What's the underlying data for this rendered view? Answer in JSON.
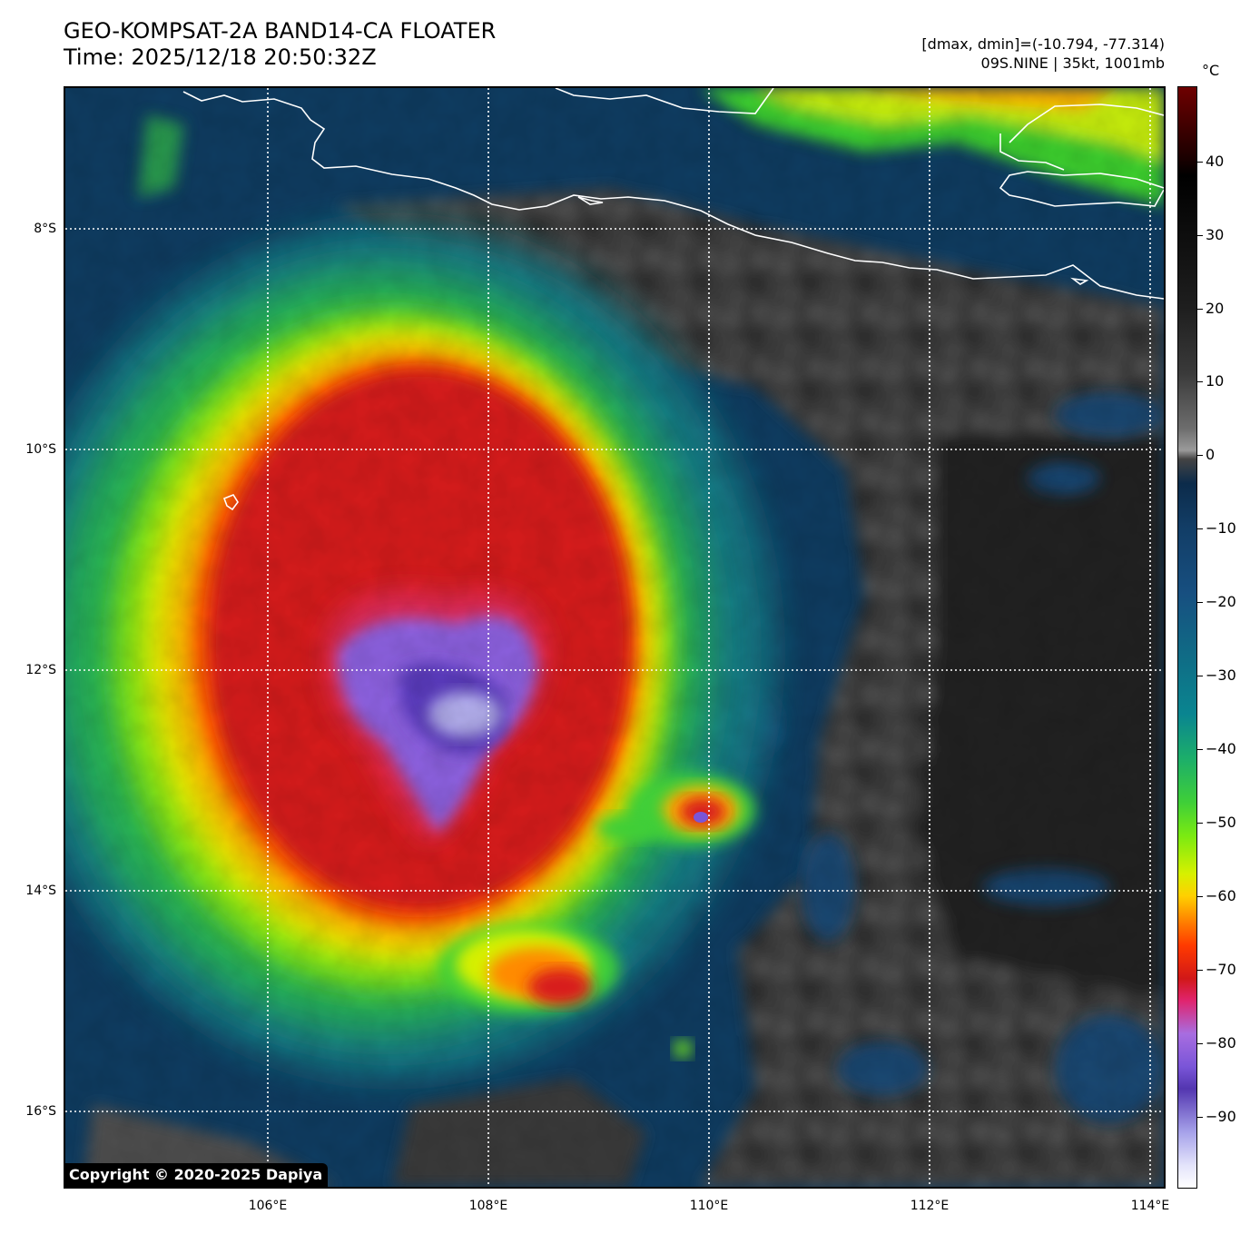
{
  "header": {
    "title": "GEO-KOMPSAT-2A BAND14-CA FLOATER",
    "time": "Time: 2025/12/18 20:50:32Z",
    "dmax_dmin": "[dmax, dmin]=(-10.794, -77.314)",
    "storm": "09S.NINE | 35kt, 1001mb"
  },
  "axes": {
    "lat_labels": [
      "8°S",
      "10°S",
      "12°S",
      "14°S",
      "16°S"
    ],
    "lon_labels": [
      "106°E",
      "108°E",
      "110°E",
      "112°E",
      "114°E"
    ]
  },
  "colorbar": {
    "unit": "°C",
    "labels": [
      "40",
      "30",
      "20",
      "10",
      "0",
      "−10",
      "−20",
      "−30",
      "−40",
      "−50",
      "−60",
      "−70",
      "−80",
      "−90"
    ]
  },
  "copyright": "Copyright © 2020-2025 Dapiya",
  "colors": {
    "cold_top_purple": "#8a63e6",
    "deep_red": "#d51a1a",
    "orange": "#ff7a00",
    "yellow": "#ffe600",
    "green": "#5be11e",
    "teal": "#0f7f8c",
    "ocean_blue": "#0e3a5e",
    "land_gray": "#4a4a4a",
    "coastline": "#ffffff"
  }
}
